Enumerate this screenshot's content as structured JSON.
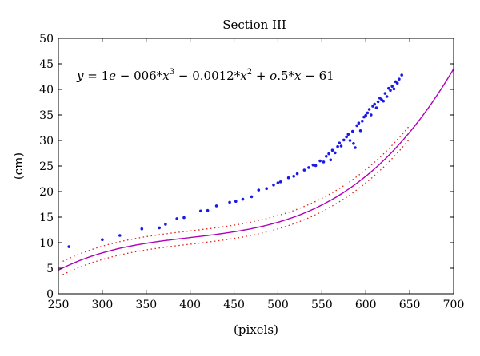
{
  "chart_data": {
    "type": "scatter",
    "title": "Section III",
    "xlabel": "(pixels)",
    "ylabel": "(cm)",
    "xlim": [
      250,
      700
    ],
    "ylim": [
      0,
      50
    ],
    "x_ticks": [
      250,
      300,
      350,
      400,
      450,
      500,
      550,
      600,
      650,
      700
    ],
    "y_ticks": [
      0,
      5,
      10,
      15,
      20,
      25,
      30,
      35,
      40,
      45,
      50
    ],
    "grid": false,
    "annotation": {
      "equation_parts": [
        "y",
        " = 1",
        "e",
        " − 006*",
        "x",
        "3",
        " − 0.0012*",
        "x",
        "2",
        " + ",
        "o",
        ".5*",
        "x",
        " − 61"
      ]
    },
    "colors": {
      "fit": "#b000b8",
      "bounds": "#e0201c",
      "points": "#1a1ae8"
    },
    "series": [
      {
        "kind": "fit_curve",
        "coefficients": [
          1e-06,
          -0.0012,
          0.5,
          -61
        ],
        "x_range": [
          250,
          700
        ]
      },
      {
        "kind": "confidence_bounds",
        "offset": 1.3,
        "x_range": [
          255,
          650
        ]
      },
      {
        "kind": "points",
        "x": [
          262,
          300,
          320,
          345,
          365,
          372,
          385,
          393,
          412,
          420,
          430,
          445,
          452,
          460,
          470,
          478,
          487,
          495,
          500,
          503,
          512,
          518,
          522,
          530,
          535,
          540,
          543,
          548,
          552,
          555,
          558,
          560,
          562,
          565,
          568,
          570,
          572,
          575,
          578,
          580,
          582,
          585,
          586,
          588,
          590,
          592,
          594,
          596,
          598,
          600,
          602,
          604,
          606,
          608,
          610,
          612,
          614,
          616,
          618,
          620,
          622,
          624,
          626,
          628,
          630,
          632,
          634,
          636,
          638,
          641
        ],
        "y": [
          9.2,
          10.6,
          11.4,
          12.7,
          12.9,
          13.6,
          14.7,
          14.9,
          16.2,
          16.3,
          17.2,
          17.9,
          18.1,
          18.5,
          19.0,
          20.3,
          20.6,
          21.3,
          21.7,
          21.9,
          22.7,
          23.0,
          23.5,
          24.2,
          24.7,
          25.2,
          25.1,
          26.0,
          25.8,
          26.9,
          27.4,
          26.2,
          28.1,
          27.6,
          28.8,
          29.5,
          28.9,
          30.1,
          30.7,
          31.2,
          30.0,
          31.8,
          29.4,
          28.6,
          32.9,
          33.4,
          31.9,
          33.8,
          34.6,
          34.9,
          35.4,
          36.1,
          35.0,
          36.7,
          37.1,
          36.4,
          37.6,
          38.3,
          38.0,
          37.7,
          39.2,
          38.6,
          40.2,
          39.8,
          40.6,
          40.1,
          41.5,
          41.2,
          42.0,
          42.8
        ]
      }
    ]
  }
}
